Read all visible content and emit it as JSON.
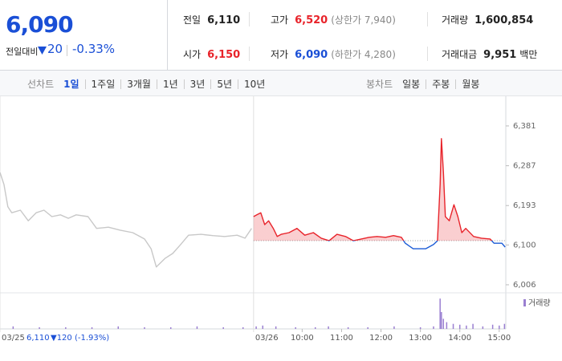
{
  "header": {
    "price": "6,090",
    "change_label": "전일대비",
    "change": "20",
    "change_rate": "-0.33%",
    "stats": [
      {
        "label": "전일",
        "value": "6,110"
      },
      {
        "label": "고가",
        "value": "6,520",
        "color": "#e8232a",
        "note": "(상한가 7,940)"
      },
      {
        "label": "거래량",
        "value": "1,600,854"
      },
      {
        "label": "시가",
        "value": "6,150",
        "color": "#e8232a"
      },
      {
        "label": "저가",
        "value": "6,090",
        "color": "#1a4fd6",
        "note": "(하한가 4,280)"
      },
      {
        "label": "거래대금",
        "value": "9,951",
        "unit": "백만"
      }
    ]
  },
  "tabs": {
    "line": {
      "label": "선차트",
      "items": [
        "1일",
        "1주일",
        "3개월",
        "1년",
        "3년",
        "5년",
        "10년"
      ],
      "active": 0
    },
    "candle": {
      "label": "봉차트",
      "items": [
        "일봉",
        "주봉",
        "월봉"
      ]
    }
  },
  "chart_data": {
    "type": "line",
    "xlim": [
      0,
      770
    ],
    "ylim": [
      5987,
      6451
    ],
    "yticks": [
      {
        "value": 6381,
        "label": "6,381"
      },
      {
        "value": 6287,
        "label": "6,287"
      },
      {
        "value": 6193,
        "label": "6,193"
      },
      {
        "value": 6100,
        "label": "6,100"
      },
      {
        "value": 6006,
        "label": "6,006"
      }
    ],
    "xticks": [
      {
        "value": 0,
        "label": "03/25"
      },
      {
        "value": 386,
        "label": "03/26"
      },
      {
        "value": 460,
        "label": "10:00"
      },
      {
        "value": 520,
        "label": "11:00"
      },
      {
        "value": 580,
        "label": "12:00"
      },
      {
        "value": 640,
        "label": "13:00"
      },
      {
        "value": 700,
        "label": "14:00"
      },
      {
        "value": 760,
        "label": "15:00"
      }
    ],
    "prev_close": {
      "value": 6110,
      "label": "6,110"
    },
    "prev_change": "▼120 (-1.93%)",
    "grid": false,
    "series": [
      {
        "color": "#c8c8c8",
        "x": [
          0,
          6,
          12,
          18,
          31,
          43,
          55,
          67,
          79,
          92,
          104,
          116,
          134,
          147,
          165,
          183,
          202,
          220,
          230,
          238,
          251,
          263,
          275,
          287,
          306,
          324,
          342,
          361,
          373,
          383
        ],
        "values": [
          6271,
          6243,
          6190,
          6176,
          6182,
          6157,
          6176,
          6182,
          6167,
          6171,
          6163,
          6171,
          6167,
          6139,
          6142,
          6135,
          6129,
          6114,
          6091,
          6048,
          6068,
          6080,
          6101,
          6123,
          6125,
          6122,
          6120,
          6123,
          6116,
          6139
        ]
      },
      {
        "color": "#e8232a",
        "down_color": "#1a5bd6",
        "x": [
          386,
          391,
          397,
          403,
          409,
          416,
          422,
          428,
          440,
          452,
          464,
          477,
          489,
          501,
          513,
          526,
          538,
          550,
          562,
          574,
          587,
          599,
          611,
          617,
          629,
          648,
          660,
          666,
          670,
          672,
          675,
          678,
          684,
          691,
          697,
          703,
          709,
          721,
          733,
          746,
          752,
          764,
          769
        ],
        "values": [
          6167,
          6171,
          6176,
          6148,
          6157,
          6139,
          6120,
          6125,
          6129,
          6139,
          6123,
          6129,
          6116,
          6110,
          6125,
          6120,
          6110,
          6114,
          6118,
          6120,
          6118,
          6122,
          6118,
          6104,
          6091,
          6091,
          6101,
          6110,
          6243,
          6351,
          6271,
          6167,
          6157,
          6195,
          6167,
          6129,
          6139,
          6120,
          6116,
          6114,
          6104,
          6104,
          6095
        ]
      }
    ],
    "volume": {
      "name": "거래량",
      "color": "#9a7fd1",
      "ylim": [
        0,
        40
      ],
      "x": [
        20,
        60,
        100,
        140,
        180,
        220,
        260,
        300,
        340,
        370,
        390,
        400,
        420,
        450,
        480,
        500,
        530,
        560,
        600,
        640,
        660,
        670,
        672,
        675,
        680,
        690,
        700,
        710,
        720,
        735,
        750,
        760,
        768
      ],
      "values": [
        3,
        2,
        2,
        2,
        3,
        2,
        2,
        3,
        2,
        2,
        3,
        4,
        3,
        2,
        2,
        3,
        2,
        2,
        3,
        2,
        3,
        36,
        20,
        12,
        8,
        6,
        5,
        4,
        6,
        3,
        5,
        4,
        6
      ]
    }
  }
}
